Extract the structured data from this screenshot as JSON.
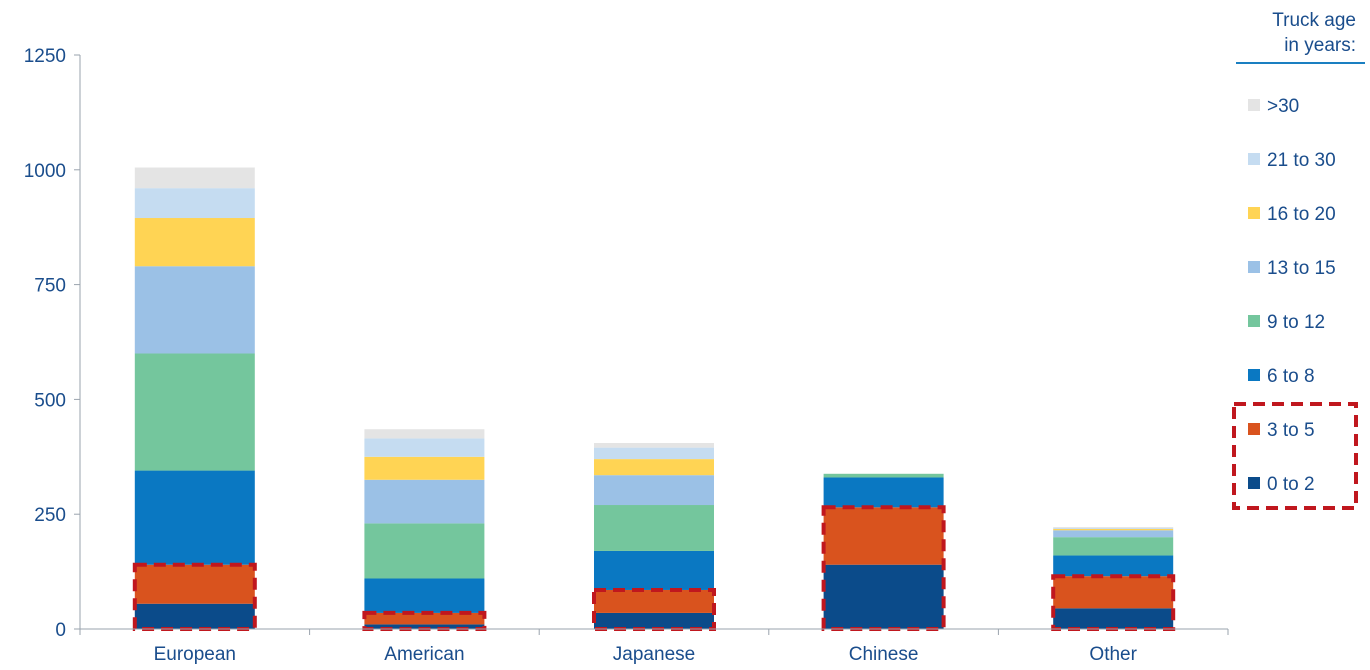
{
  "chart_data": {
    "type": "bar",
    "stacked": true,
    "categories": [
      "European",
      "American",
      "Japanese",
      "Chinese",
      "Other"
    ],
    "ylim": [
      0,
      1250
    ],
    "yticks": [
      0,
      250,
      500,
      750,
      1000,
      1250
    ],
    "grid": false,
    "legend": {
      "title_lines": [
        "Truck age",
        "in years:"
      ],
      "placement": "right",
      "highlighted": [
        "3 to 5",
        "0 to 2"
      ]
    },
    "series": [
      {
        "name": "0 to 2",
        "color": "#0b4b8a",
        "values": [
          55,
          10,
          35,
          140,
          45
        ]
      },
      {
        "name": "3 to 5",
        "color": "#d9531e",
        "values": [
          85,
          25,
          50,
          125,
          70
        ]
      },
      {
        "name": "6 to 8",
        "color": "#0a78c2",
        "values": [
          205,
          75,
          85,
          65,
          45
        ]
      },
      {
        "name": "9 to 12",
        "color": "#74c69d",
        "values": [
          255,
          120,
          100,
          8,
          40
        ]
      },
      {
        "name": "13 to 15",
        "color": "#9bc1e6",
        "values": [
          190,
          95,
          65,
          0,
          15
        ]
      },
      {
        "name": "16 to 20",
        "color": "#ffd454",
        "values": [
          105,
          50,
          35,
          0,
          3
        ]
      },
      {
        "name": "21 to 30",
        "color": "#c5dcf1",
        "values": [
          65,
          40,
          25,
          0,
          2
        ]
      },
      {
        "name": ">30",
        "color": "#e4e4e4",
        "values": [
          45,
          20,
          10,
          0,
          2
        ]
      }
    ],
    "highlight_color": "#c0171e"
  }
}
